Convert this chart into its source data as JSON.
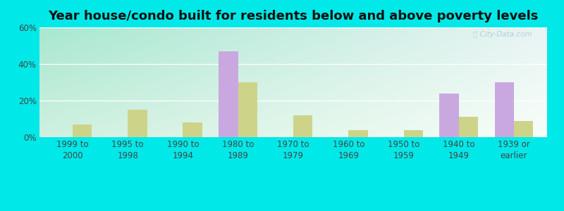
{
  "title": "Year house/condo built for residents below and above poverty levels",
  "categories": [
    "1999 to\n2000",
    "1995 to\n1998",
    "1990 to\n1994",
    "1980 to\n1989",
    "1970 to\n1979",
    "1960 to\n1969",
    "1950 to\n1959",
    "1940 to\n1949",
    "1939 or\nearlier"
  ],
  "below_poverty": [
    0,
    0,
    0,
    47,
    0,
    0,
    0,
    24,
    30
  ],
  "above_poverty": [
    7,
    15,
    8,
    30,
    12,
    4,
    4,
    11,
    9
  ],
  "below_color": "#c9a8e0",
  "above_color": "#cdd48a",
  "background_outer": "#00e8e8",
  "ylim": [
    0,
    60
  ],
  "yticks": [
    0,
    20,
    40,
    60
  ],
  "ytick_labels": [
    "0%",
    "20%",
    "40%",
    "60%"
  ],
  "bar_width": 0.35,
  "title_fontsize": 13,
  "tick_fontsize": 8.5,
  "legend_fontsize": 9,
  "grid_color": "#ffffff",
  "watermark_color": "#b0c8d0",
  "bg_topleft": "#a8e8d0",
  "bg_topright": "#e8f4f4",
  "bg_bottomleft": "#d0f0e0",
  "bg_bottomright": "#f8fef8"
}
